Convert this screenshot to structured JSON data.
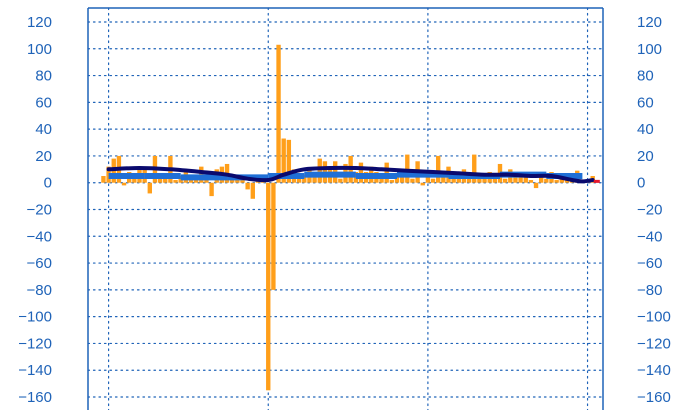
{
  "chart_data": {
    "type": "bar",
    "title": "",
    "xlabel": "",
    "ylabel": "",
    "ylim": [
      -160,
      120
    ],
    "y_ticks": [
      120,
      100,
      80,
      60,
      40,
      20,
      0,
      -20,
      -40,
      -60,
      -80,
      -100,
      -120,
      -140,
      -160
    ],
    "y_axes": "left-and-right",
    "x_range": [
      0,
      100
    ],
    "x_gridlines": [
      4,
      35,
      66,
      97
    ],
    "grid": "dotted",
    "legend": "none",
    "colors": {
      "bars": "#ff9f1a",
      "step_line": "#1f6fd6",
      "smooth_line": "#0a0a6e",
      "tail_marker": "#e8182c",
      "frame": "#1f63b8",
      "grid": "#1f63b8"
    },
    "series": [
      {
        "type": "bar",
        "x": [
          3,
          4,
          5,
          6,
          7,
          8,
          9,
          10,
          11,
          12,
          13,
          14,
          15,
          16,
          17,
          18,
          19,
          20,
          21,
          22,
          23,
          24,
          25,
          26,
          27,
          28,
          29,
          30,
          31,
          32,
          33,
          34,
          35,
          36,
          37,
          38,
          39,
          40,
          41,
          42,
          43,
          44,
          45,
          46,
          47,
          48,
          49,
          50,
          51,
          52,
          53,
          54,
          55,
          56,
          57,
          58,
          59,
          60,
          61,
          62,
          63,
          64,
          65,
          66,
          67,
          68,
          69,
          70,
          71,
          72,
          73,
          74,
          75,
          76,
          77,
          78,
          79,
          80,
          81,
          82,
          83,
          84,
          85,
          86,
          87,
          88,
          89,
          90,
          91,
          92,
          93,
          94,
          95,
          96,
          97,
          98
        ],
        "values": [
          5,
          12,
          18,
          20,
          -2,
          8,
          6,
          10,
          12,
          -8,
          20,
          6,
          4,
          20,
          2,
          5,
          10,
          4,
          6,
          12,
          3,
          -10,
          10,
          12,
          14,
          5,
          3,
          2,
          -5,
          -12,
          2,
          3,
          -155,
          -80,
          103,
          33,
          32,
          10,
          5,
          6,
          10,
          5,
          18,
          16,
          10,
          16,
          3,
          14,
          20,
          8,
          15,
          8,
          12,
          8,
          6,
          15,
          2,
          5,
          10,
          21,
          3,
          16,
          -2,
          5,
          3,
          20,
          6,
          12,
          5,
          4,
          10,
          8,
          21,
          6,
          5,
          8,
          6,
          14,
          3,
          10,
          4,
          6,
          8,
          2,
          -4,
          5,
          3,
          8,
          2,
          6,
          4,
          3,
          9,
          1,
          2,
          5
        ]
      },
      {
        "type": "step",
        "segments": [
          {
            "x0": 4,
            "x1": 11,
            "y": 5
          },
          {
            "x0": 11,
            "x1": 18,
            "y": 5
          },
          {
            "x0": 18,
            "x1": 27,
            "y": 4
          },
          {
            "x0": 27,
            "x1": 35,
            "y": 4
          },
          {
            "x0": 35,
            "x1": 42,
            "y": 5
          },
          {
            "x0": 42,
            "x1": 52,
            "y": 6
          },
          {
            "x0": 52,
            "x1": 60,
            "y": 5
          },
          {
            "x0": 60,
            "x1": 70,
            "y": 6
          },
          {
            "x0": 70,
            "x1": 80,
            "y": 5
          },
          {
            "x0": 80,
            "x1": 89,
            "y": 6
          },
          {
            "x0": 89,
            "x1": 96,
            "y": 5
          }
        ]
      },
      {
        "type": "line",
        "x": [
          4,
          10,
          16,
          22,
          27,
          31,
          35,
          38,
          42,
          47,
          52,
          57,
          62,
          67,
          72,
          77,
          82,
          86,
          90,
          94,
          96,
          98
        ],
        "values": [
          10,
          11,
          10,
          8,
          6,
          3,
          2,
          6,
          10,
          11,
          11,
          10,
          9,
          8,
          7,
          6,
          6,
          5,
          5,
          2,
          1,
          2
        ]
      },
      {
        "type": "marker",
        "x": 98.8,
        "y": 1
      }
    ]
  }
}
